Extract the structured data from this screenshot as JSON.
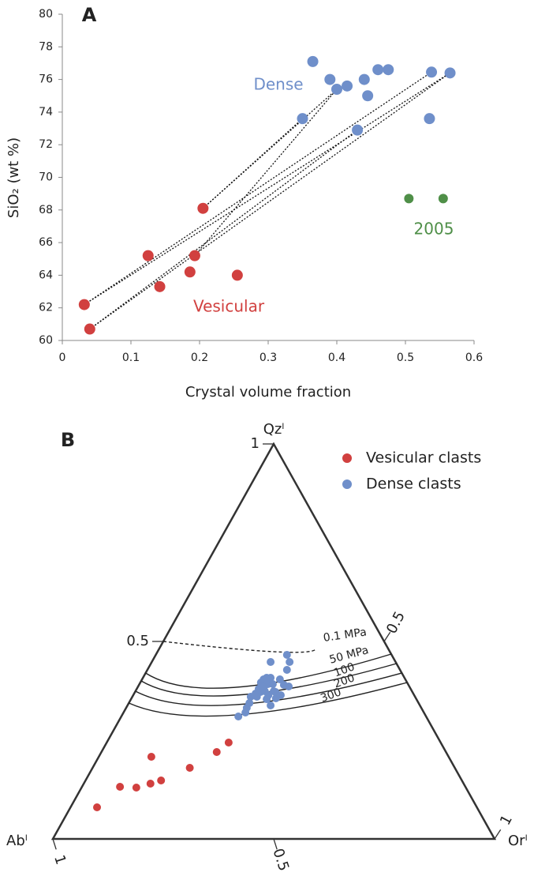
{
  "chart_data": [
    {
      "type": "scatter",
      "panel_label": "A",
      "x_label": "Crystal volume fraction",
      "y_label": "SiO₂ (wt %)",
      "xlim": [
        0,
        0.6
      ],
      "xticks": [
        0,
        0.1,
        0.2,
        0.3,
        0.4,
        0.5,
        0.6
      ],
      "ylim": [
        60,
        80
      ],
      "yticks": [
        60,
        62,
        64,
        66,
        68,
        70,
        72,
        74,
        76,
        78,
        80
      ],
      "series": [
        {
          "name": "Dense",
          "color": "#6f8fca",
          "x": [
            0.35,
            0.365,
            0.39,
            0.4,
            0.415,
            0.43,
            0.44,
            0.445,
            0.46,
            0.475,
            0.535,
            0.538,
            0.565
          ],
          "values": [
            73.6,
            77.1,
            76.0,
            75.4,
            75.6,
            72.9,
            76.0,
            75.0,
            76.6,
            76.6,
            73.6,
            76.45,
            76.4
          ]
        },
        {
          "name": "Vesicular",
          "color": "#d1403f",
          "x": [
            0.032,
            0.04,
            0.125,
            0.142,
            0.186,
            0.193,
            0.205,
            0.255
          ],
          "values": [
            62.2,
            60.7,
            65.2,
            63.3,
            64.2,
            65.2,
            68.1,
            64.0
          ]
        },
        {
          "name": "2005",
          "color": "#4f8f48",
          "x": [
            0.505,
            0.555
          ],
          "values": [
            68.7,
            68.7
          ]
        }
      ],
      "tie_lines": [
        {
          "x": [
            0.032,
            0.538
          ],
          "y": [
            62.2,
            76.45
          ]
        },
        {
          "x": [
            0.032,
            0.565
          ],
          "y": [
            62.2,
            76.4
          ]
        },
        {
          "x": [
            0.04,
            0.565
          ],
          "y": [
            60.7,
            76.4
          ]
        },
        {
          "x": [
            0.04,
            0.43
          ],
          "y": [
            60.7,
            72.9
          ]
        },
        {
          "x": [
            0.193,
            0.4
          ],
          "y": [
            65.2,
            75.4
          ]
        },
        {
          "x": [
            0.205,
            0.35
          ],
          "y": [
            68.1,
            73.6
          ]
        },
        {
          "x": [
            0.205,
            0.4
          ],
          "y": [
            68.1,
            75.4
          ]
        }
      ]
    },
    {
      "type": "ternary",
      "panel_label": "B",
      "vertices": {
        "top": "Qzˡ",
        "left": "Abˡ",
        "right": "Orˡ"
      },
      "qz_ticks": [
        0.5,
        1
      ],
      "or_ticks": [
        0.5,
        1
      ],
      "ab_ticks": [
        0.5,
        1
      ],
      "legend": "upper right",
      "series": [
        {
          "name": "Vesicular clasts",
          "color": "#d1403f",
          "qz": [
            0.08,
            0.132,
            0.13,
            0.14,
            0.148,
            0.208,
            0.18,
            0.22,
            0.244
          ],
          "or": [
            0.06,
            0.086,
            0.124,
            0.151,
            0.171,
            0.119,
            0.22,
            0.261,
            0.276
          ]
        },
        {
          "name": "Dense clasts",
          "color": "#6f8fca",
          "qz": [
            0.31,
            0.32,
            0.332,
            0.344,
            0.36,
            0.368,
            0.38,
            0.396,
            0.404,
            0.408,
            0.408,
            0.372,
            0.374,
            0.364,
            0.374,
            0.364,
            0.364,
            0.354,
            0.338,
            0.356,
            0.404,
            0.39,
            0.386,
            0.428,
            0.448,
            0.466,
            0.448,
            0.392,
            0.36,
            0.384,
            0.392,
            0.372
          ],
          "or": [
            0.265,
            0.276,
            0.273,
            0.273,
            0.268,
            0.275,
            0.276,
            0.273,
            0.275,
            0.28,
            0.289,
            0.284,
            0.293,
            0.306,
            0.313,
            0.327,
            0.334,
            0.307,
            0.324,
            0.327,
            0.312,
            0.328,
            0.341,
            0.316,
            0.312,
            0.297,
            0.269,
            0.291,
            0.282,
            0.285,
            0.302,
            0.318
          ]
        }
      ],
      "curves": [
        {
          "label": "0.1 MPa",
          "dashed": true,
          "qz": [
            0.5,
            0.474,
            0.48
          ],
          "or": [
            0,
            0.263,
            0.355
          ]
        },
        {
          "label": "50 MPa",
          "dashed": false,
          "qz": [
            0.42,
            0.384,
            0.468
          ],
          "or": [
            0,
            0.224,
            0.532
          ]
        },
        {
          "label": "100",
          "dashed": false,
          "qz": [
            0.4,
            0.364,
            0.444
          ],
          "or": [
            0,
            0.234,
            0.556
          ]
        },
        {
          "label": "200",
          "dashed": false,
          "qz": [
            0.374,
            0.34,
            0.42
          ],
          "or": [
            0,
            0.246,
            0.58
          ]
        },
        {
          "label": "300",
          "dashed": false,
          "qz": [
            0.344,
            0.314,
            0.396
          ],
          "or": [
            0,
            0.259,
            0.604
          ]
        }
      ]
    }
  ]
}
